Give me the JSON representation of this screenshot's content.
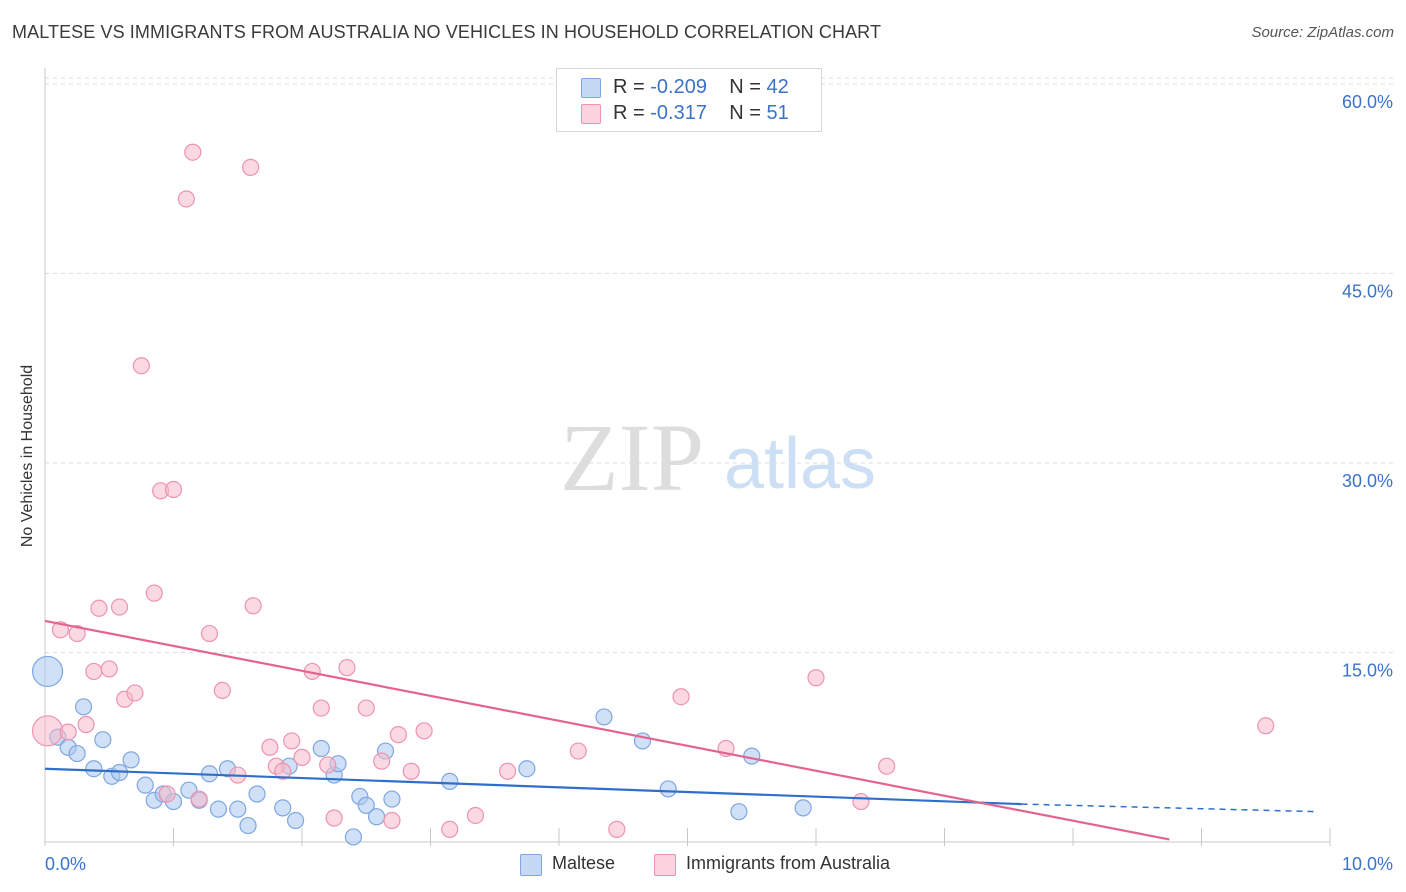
{
  "title": "MALTESE VS IMMIGRANTS FROM AUSTRALIA NO VEHICLES IN HOUSEHOLD CORRELATION CHART",
  "source": "Source: ZipAtlas.com",
  "watermark": {
    "zip": "ZIP",
    "atlas": "atlas"
  },
  "legend": {
    "rows": [
      {
        "r_label": "R = ",
        "r_value": "-0.209",
        "n_label": "N = ",
        "n_value": "42"
      },
      {
        "r_label": "R = ",
        "r_value": " -0.317",
        "n_label": "N = ",
        "n_value": " 51"
      }
    ]
  },
  "colors": {
    "blue_fill": "#a9c6ee",
    "blue_stroke": "#7ea7e0",
    "blue_line": "#2f6fcc",
    "pink_fill": "#f6b9cb",
    "pink_stroke": "#ee93b0",
    "pink_line": "#e5648f",
    "axis_text": "#3b73c9",
    "grid": "#dddddd"
  },
  "chart_data": {
    "type": "scatter",
    "title": "MALTESE VS IMMIGRANTS FROM AUSTRALIA NO VEHICLES IN HOUSEHOLD CORRELATION CHART",
    "xlabel": "",
    "ylabel": "No Vehicles in Household",
    "xlim": [
      0,
      10
    ],
    "ylim": [
      0,
      60
    ],
    "x_tick_labels": [
      "0.0%",
      "10.0%"
    ],
    "y_ticks": [
      15,
      30,
      45,
      60
    ],
    "y_tick_labels": [
      "15.0%",
      "30.0%",
      "45.0%",
      "60.0%"
    ],
    "legend_position": "top-center",
    "series": [
      {
        "name": "Maltese",
        "r": -0.209,
        "n": 42,
        "color": "#a9c6ee",
        "trend": {
          "x": [
            0,
            7.6
          ],
          "y": [
            5.8,
            3.0
          ],
          "dashed_to": [
            9.9,
            2.4
          ]
        },
        "points": [
          [
            0.02,
            13.5,
            "large"
          ],
          [
            0.1,
            8.3
          ],
          [
            0.18,
            7.5
          ],
          [
            0.25,
            7.0
          ],
          [
            0.3,
            10.7
          ],
          [
            0.38,
            5.8
          ],
          [
            0.45,
            8.1
          ],
          [
            0.52,
            5.2
          ],
          [
            0.58,
            5.5
          ],
          [
            0.67,
            6.5
          ],
          [
            0.78,
            4.5
          ],
          [
            0.85,
            3.3
          ],
          [
            0.92,
            3.8
          ],
          [
            1.0,
            3.2
          ],
          [
            1.12,
            4.1
          ],
          [
            1.2,
            3.3
          ],
          [
            1.28,
            5.4
          ],
          [
            1.35,
            2.6
          ],
          [
            1.42,
            5.8
          ],
          [
            1.5,
            2.6
          ],
          [
            1.58,
            1.3
          ],
          [
            1.65,
            3.8
          ],
          [
            1.85,
            2.7
          ],
          [
            1.9,
            6.0
          ],
          [
            1.95,
            1.7
          ],
          [
            2.15,
            7.4
          ],
          [
            2.25,
            5.3
          ],
          [
            2.28,
            6.2
          ],
          [
            2.4,
            0.4
          ],
          [
            2.45,
            3.6
          ],
          [
            2.5,
            2.9
          ],
          [
            2.58,
            2.0
          ],
          [
            2.65,
            7.2
          ],
          [
            2.7,
            3.4
          ],
          [
            3.15,
            4.8
          ],
          [
            3.75,
            5.8
          ],
          [
            4.35,
            9.9
          ],
          [
            4.65,
            8.0
          ],
          [
            4.85,
            4.2
          ],
          [
            5.4,
            2.4
          ],
          [
            5.5,
            6.8
          ],
          [
            5.9,
            2.7
          ]
        ]
      },
      {
        "name": "Immigrants from Australia",
        "r": -0.317,
        "n": 51,
        "color": "#f6b9cb",
        "trend": {
          "x": [
            0,
            8.75
          ],
          "y": [
            17.5,
            0.2
          ]
        },
        "points": [
          [
            0.02,
            8.8,
            "large"
          ],
          [
            0.12,
            16.8
          ],
          [
            0.18,
            8.7
          ],
          [
            0.25,
            16.5
          ],
          [
            0.32,
            9.3
          ],
          [
            0.38,
            13.5
          ],
          [
            0.42,
            18.5
          ],
          [
            0.5,
            13.7
          ],
          [
            0.58,
            18.6
          ],
          [
            0.62,
            11.3
          ],
          [
            0.7,
            11.8
          ],
          [
            0.75,
            37.7
          ],
          [
            0.85,
            19.7
          ],
          [
            0.9,
            27.8
          ],
          [
            0.95,
            3.8
          ],
          [
            1.0,
            27.9
          ],
          [
            1.1,
            50.9
          ],
          [
            1.15,
            54.6
          ],
          [
            1.2,
            3.4
          ],
          [
            1.28,
            16.5
          ],
          [
            1.38,
            12.0
          ],
          [
            1.5,
            5.3
          ],
          [
            1.6,
            53.4
          ],
          [
            1.62,
            18.7
          ],
          [
            1.75,
            7.5
          ],
          [
            1.8,
            6.0
          ],
          [
            1.85,
            5.6
          ],
          [
            1.92,
            8.0
          ],
          [
            2.0,
            6.7
          ],
          [
            2.08,
            13.5
          ],
          [
            2.15,
            10.6
          ],
          [
            2.2,
            6.1
          ],
          [
            2.25,
            1.9
          ],
          [
            2.35,
            13.8
          ],
          [
            2.5,
            10.6
          ],
          [
            2.62,
            6.4
          ],
          [
            2.7,
            1.7
          ],
          [
            2.75,
            8.5
          ],
          [
            2.85,
            5.6
          ],
          [
            2.95,
            8.8
          ],
          [
            3.15,
            1.0
          ],
          [
            3.35,
            2.1
          ],
          [
            3.6,
            5.6
          ],
          [
            4.15,
            7.2
          ],
          [
            4.45,
            1.0
          ],
          [
            4.95,
            11.5
          ],
          [
            5.3,
            7.4
          ],
          [
            6.0,
            13.0
          ],
          [
            6.35,
            3.2
          ],
          [
            6.55,
            6.0
          ],
          [
            9.5,
            9.2
          ]
        ]
      }
    ]
  },
  "bottom_legend": [
    "Maltese",
    "Immigrants from Australia"
  ]
}
